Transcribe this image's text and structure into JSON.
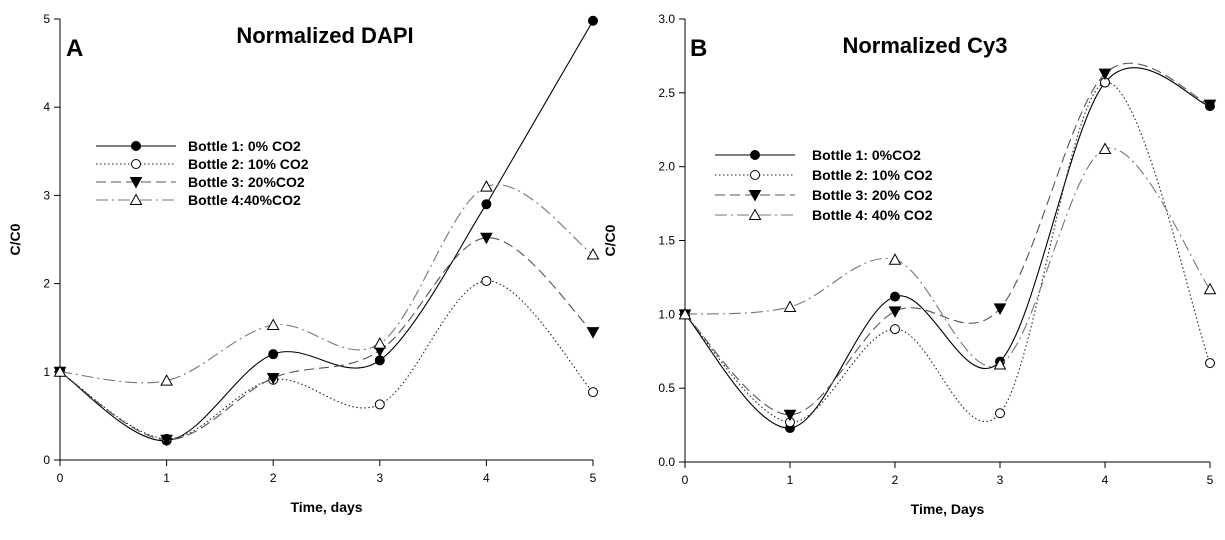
{
  "chart_data": [
    {
      "type": "line",
      "panel_letter": "A",
      "title": "Normalized DAPI",
      "xlabel": "Time, days",
      "ylabel": "C/C0",
      "xlim": [
        0,
        5
      ],
      "ylim": [
        0,
        5
      ],
      "xticks": [
        "0",
        "1",
        "2",
        "3",
        "4",
        "5"
      ],
      "yticks": [
        "0",
        "1",
        "2",
        "3",
        "4",
        "5"
      ],
      "grid": false,
      "legend_position": "upper-left",
      "x": [
        0,
        1,
        2,
        3,
        4,
        5
      ],
      "series": [
        {
          "name": "Bottle 1: 0% CO2",
          "values": [
            1.0,
            0.22,
            1.2,
            1.13,
            2.9,
            4.98
          ],
          "marker": "filled-circle",
          "dash": "solid"
        },
        {
          "name": "Bottle 2: 10% CO2",
          "values": [
            1.0,
            0.24,
            0.91,
            0.63,
            2.03,
            0.77
          ],
          "marker": "open-circle",
          "dash": "dotted"
        },
        {
          "name": "Bottle 3: 20%CO2",
          "values": [
            1.0,
            0.23,
            0.93,
            1.24,
            2.52,
            1.45
          ],
          "marker": "filled-triangle-down",
          "dash": "dashed"
        },
        {
          "name": "Bottle 4:40%CO2",
          "values": [
            1.0,
            0.9,
            1.53,
            1.32,
            3.1,
            2.33
          ],
          "marker": "open-triangle-up",
          "dash": "dashdot"
        }
      ]
    },
    {
      "type": "line",
      "panel_letter": "B",
      "title": "Normalized Cy3",
      "xlabel": "Time, Days",
      "ylabel": "C/C0",
      "xlim": [
        0,
        5
      ],
      "ylim": [
        0,
        3
      ],
      "xticks": [
        "0",
        "1",
        "2",
        "3",
        "4",
        "5"
      ],
      "yticks": [
        "0.0",
        "0.5",
        "1.0",
        "1.5",
        "2.0",
        "2.5",
        "3.0"
      ],
      "grid": false,
      "legend_position": "upper-left",
      "x": [
        0,
        1,
        2,
        3,
        4,
        5
      ],
      "series": [
        {
          "name": "Bottle 1: 0%CO2",
          "values": [
            1.0,
            0.23,
            1.12,
            0.68,
            2.57,
            2.41
          ],
          "marker": "filled-circle",
          "dash": "solid"
        },
        {
          "name": "Bottle 2: 10% CO2",
          "values": [
            1.0,
            0.27,
            0.9,
            0.33,
            2.57,
            0.67
          ],
          "marker": "open-circle",
          "dash": "dotted"
        },
        {
          "name": "Bottle 3: 20% CO2",
          "values": [
            1.0,
            0.32,
            1.02,
            1.04,
            2.63,
            2.42
          ],
          "marker": "filled-triangle-down",
          "dash": "dashed"
        },
        {
          "name": "Bottle 4: 40% CO2",
          "values": [
            1.0,
            1.05,
            1.37,
            0.66,
            2.12,
            1.17
          ],
          "marker": "open-triangle-up",
          "dash": "dashdot"
        }
      ]
    }
  ]
}
